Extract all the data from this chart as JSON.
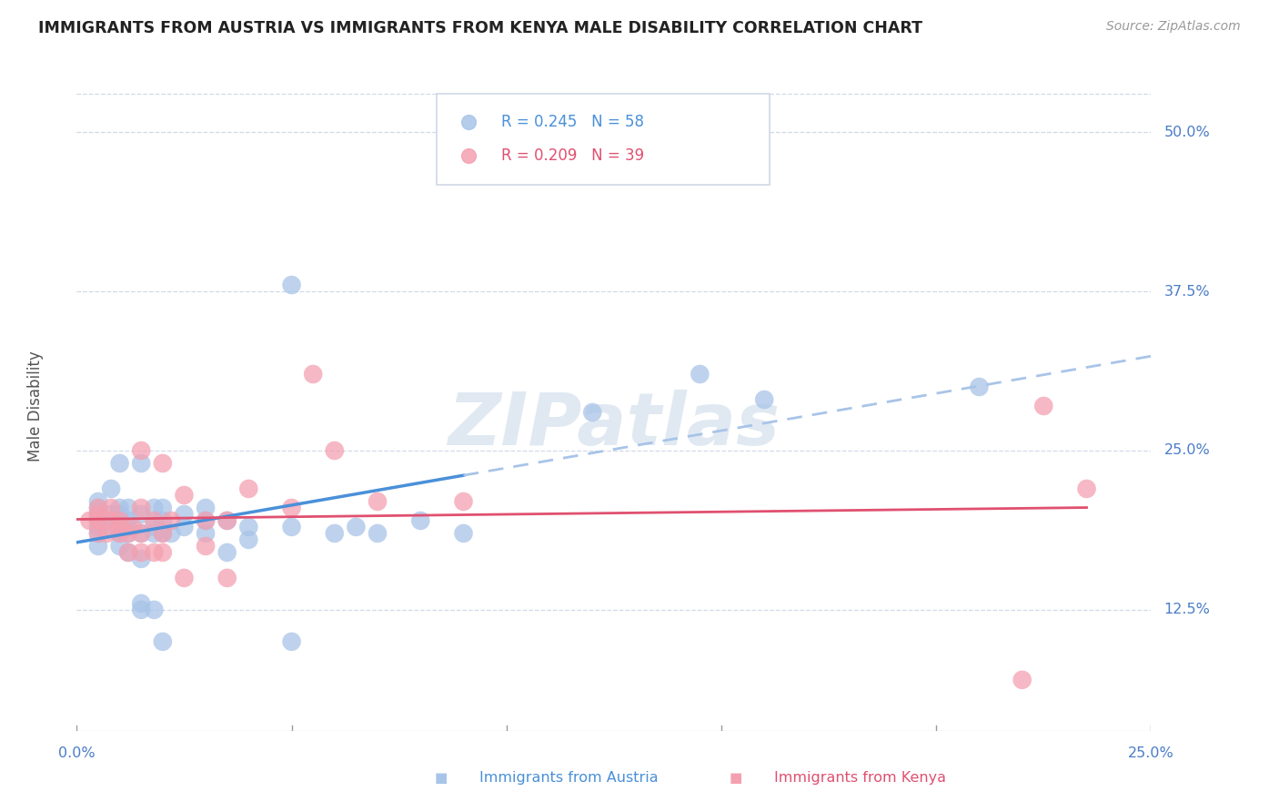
{
  "title": "IMMIGRANTS FROM AUSTRIA VS IMMIGRANTS FROM KENYA MALE DISABILITY CORRELATION CHART",
  "source": "Source: ZipAtlas.com",
  "ylabel": "Male Disability",
  "ytick_labels": [
    "12.5%",
    "25.0%",
    "37.5%",
    "50.0%"
  ],
  "ytick_values": [
    0.125,
    0.25,
    0.375,
    0.5
  ],
  "xlim": [
    0.0,
    0.25
  ],
  "ylim": [
    0.03,
    0.54
  ],
  "xticklabels": [
    "0.0%",
    "25.0%"
  ],
  "xtick_positions": [
    0.0,
    0.25
  ],
  "legend_austria_R": "R = 0.245",
  "legend_austria_N": "N = 58",
  "legend_kenya_R": "R = 0.209",
  "legend_kenya_N": "N = 39",
  "austria_color": "#a8c4e8",
  "kenya_color": "#f4a0b0",
  "austria_line_color": "#4a90d9",
  "kenya_line_color": "#e05070",
  "austria_line_ext_color": "#a8c4e8",
  "watermark": "ZIPatlas",
  "watermark_color": "#c8d8e8",
  "austria_x": [
    0.005,
    0.005,
    0.005,
    0.005,
    0.005,
    0.005,
    0.005,
    0.008,
    0.008,
    0.008,
    0.008,
    0.01,
    0.01,
    0.01,
    0.01,
    0.01,
    0.01,
    0.012,
    0.012,
    0.012,
    0.012,
    0.012,
    0.015,
    0.015,
    0.015,
    0.015,
    0.015,
    0.015,
    0.018,
    0.018,
    0.018,
    0.018,
    0.02,
    0.02,
    0.02,
    0.02,
    0.022,
    0.025,
    0.025,
    0.03,
    0.03,
    0.03,
    0.035,
    0.035,
    0.04,
    0.04,
    0.05,
    0.05,
    0.05,
    0.06,
    0.065,
    0.07,
    0.08,
    0.09,
    0.12,
    0.145,
    0.16,
    0.21
  ],
  "austria_y": [
    0.175,
    0.185,
    0.19,
    0.195,
    0.2,
    0.205,
    0.21,
    0.19,
    0.195,
    0.2,
    0.22,
    0.175,
    0.185,
    0.19,
    0.2,
    0.205,
    0.24,
    0.17,
    0.185,
    0.19,
    0.195,
    0.205,
    0.125,
    0.13,
    0.165,
    0.185,
    0.2,
    0.24,
    0.125,
    0.185,
    0.19,
    0.205,
    0.1,
    0.185,
    0.195,
    0.205,
    0.185,
    0.19,
    0.2,
    0.185,
    0.195,
    0.205,
    0.17,
    0.195,
    0.18,
    0.19,
    0.1,
    0.19,
    0.38,
    0.185,
    0.19,
    0.185,
    0.195,
    0.185,
    0.28,
    0.31,
    0.29,
    0.3
  ],
  "kenya_x": [
    0.003,
    0.005,
    0.005,
    0.005,
    0.005,
    0.007,
    0.008,
    0.008,
    0.01,
    0.01,
    0.01,
    0.012,
    0.012,
    0.013,
    0.015,
    0.015,
    0.015,
    0.015,
    0.018,
    0.018,
    0.02,
    0.02,
    0.02,
    0.022,
    0.025,
    0.025,
    0.03,
    0.03,
    0.035,
    0.035,
    0.04,
    0.05,
    0.055,
    0.06,
    0.07,
    0.09,
    0.22,
    0.225,
    0.235
  ],
  "kenya_y": [
    0.195,
    0.185,
    0.195,
    0.2,
    0.205,
    0.185,
    0.195,
    0.205,
    0.185,
    0.19,
    0.195,
    0.17,
    0.185,
    0.19,
    0.17,
    0.185,
    0.205,
    0.25,
    0.17,
    0.195,
    0.17,
    0.185,
    0.24,
    0.195,
    0.15,
    0.215,
    0.175,
    0.195,
    0.15,
    0.195,
    0.22,
    0.205,
    0.31,
    0.25,
    0.21,
    0.21,
    0.07,
    0.285,
    0.22
  ],
  "grid_color": "#d0d8e8",
  "background_color": "#ffffff",
  "title_color": "#222222",
  "tick_label_color": "#4a7cc7",
  "legend_text_color_austria": "#4a90d9",
  "legend_text_color_kenya": "#e05070"
}
